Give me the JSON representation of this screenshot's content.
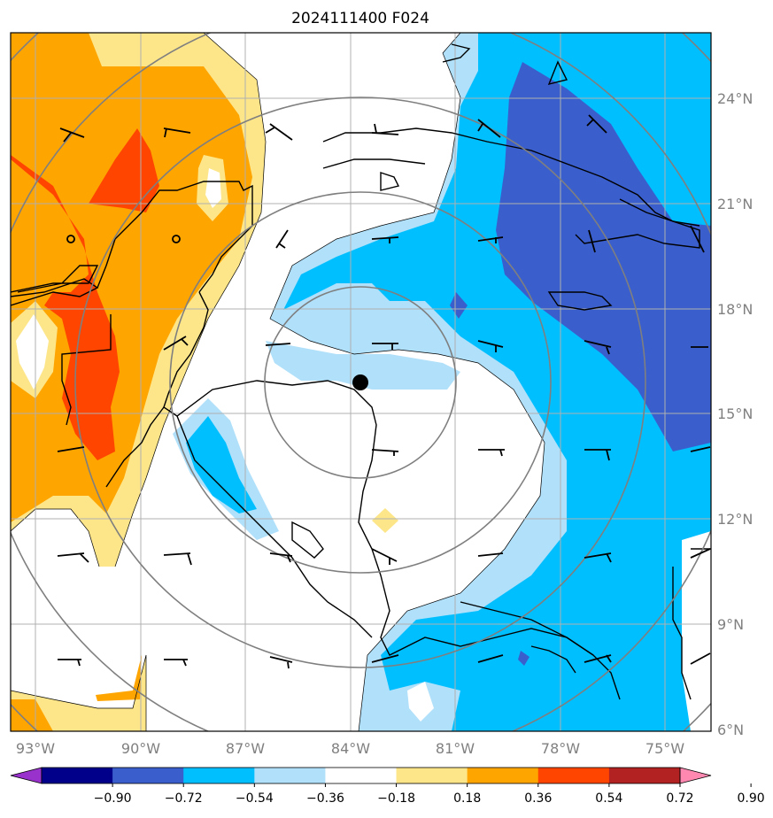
{
  "title": "2024111400 F024",
  "map": {
    "lon_range": [
      -94,
      -73.2
    ],
    "lat_range": [
      6,
      26
    ],
    "lon_ticks": [
      "93°W",
      "90°W",
      "87°W",
      "84°W",
      "81°W",
      "78°W",
      "75°W"
    ],
    "lat_ticks": [
      "24°N",
      "21°N",
      "18°N",
      "15°N",
      "12°N",
      "9°N",
      "6°N"
    ],
    "storm_center": {
      "lon": -83.8,
      "lat": 15.9
    },
    "range_rings": 5
  },
  "colorbar": {
    "labels": [
      "−0.90",
      "−0.72",
      "−0.54",
      "−0.36",
      "−0.18",
      "0.18",
      "0.36",
      "0.54",
      "0.72",
      "0.90"
    ],
    "colors": [
      "#9932cc",
      "#00008b",
      "#3a5fcd",
      "#00bfff",
      "#b0e0fa",
      "#ffffff",
      "#fde68a",
      "#ffa500",
      "#ff4500",
      "#b22222",
      "#ff88b0"
    ]
  }
}
